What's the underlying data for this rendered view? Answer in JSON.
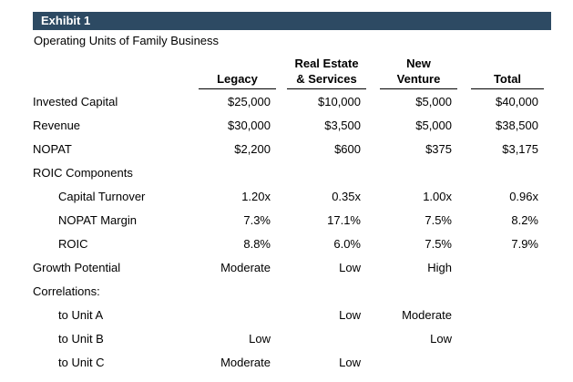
{
  "exhibit": {
    "bar_label": "Exhibit 1",
    "subtitle": "Operating Units of Family Business"
  },
  "colors": {
    "header_bar": "#2d4a63",
    "header_bar_text": "#ffffff",
    "body_text": "#000000"
  },
  "table": {
    "columns": [
      {
        "line1": "",
        "line2": "Legacy"
      },
      {
        "line1": "Real Estate",
        "line2": "& Services"
      },
      {
        "line1": "New",
        "line2": "Venture"
      },
      {
        "line1": "",
        "line2": "Total"
      }
    ],
    "rows": [
      {
        "label": "Invested Capital",
        "values": [
          "$25,000",
          "$10,000",
          "$5,000",
          "$40,000"
        ]
      },
      {
        "label": "Revenue",
        "values": [
          "$30,000",
          "$3,500",
          "$5,000",
          "$38,500"
        ]
      },
      {
        "label": "NOPAT",
        "values": [
          "$2,200",
          "$600",
          "$375",
          "$3,175"
        ]
      },
      {
        "label": "ROIC Components",
        "values": [
          "",
          "",
          "",
          ""
        ]
      },
      {
        "label": "Capital Turnover",
        "values": [
          "1.20x",
          "0.35x",
          "1.00x",
          "0.96x"
        ]
      },
      {
        "label": "NOPAT Margin",
        "values": [
          "7.3%",
          "17.1%",
          "7.5%",
          "8.2%"
        ]
      },
      {
        "label": "ROIC",
        "values": [
          "8.8%",
          "6.0%",
          "7.5%",
          "7.9%"
        ]
      },
      {
        "label": "Growth Potential",
        "values": [
          "Moderate",
          "Low",
          "High",
          ""
        ]
      },
      {
        "label": "Correlations:",
        "values": [
          "",
          "",
          "",
          ""
        ]
      },
      {
        "label": "to Unit A",
        "values": [
          "",
          "Low",
          "Moderate",
          ""
        ]
      },
      {
        "label": "to Unit B",
        "values": [
          "Low",
          "",
          "Low",
          ""
        ]
      },
      {
        "label": "to Unit C",
        "values": [
          "Moderate",
          "Low",
          "",
          ""
        ]
      }
    ]
  }
}
